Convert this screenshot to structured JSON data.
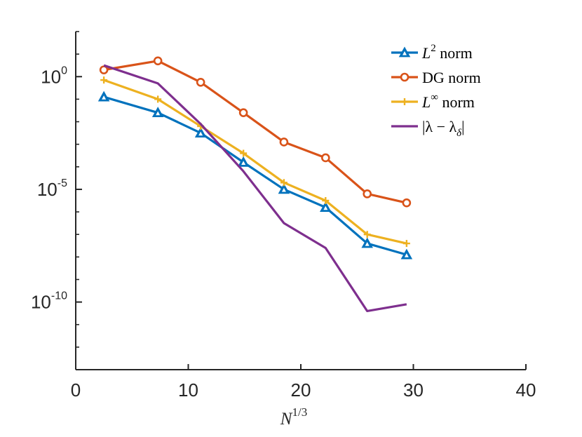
{
  "chart_data": {
    "type": "line",
    "title": "",
    "xlabel": "N^1/3",
    "xlabel_parts": {
      "base": "N",
      "sup": "1/3"
    },
    "ylabel": "",
    "xlim": [
      0,
      40
    ],
    "ylim_log10": [
      -13,
      2
    ],
    "yscale": "log",
    "grid": false,
    "legend_position": "top-right",
    "x_ticks": [
      0,
      10,
      20,
      30,
      40
    ],
    "y_ticks": [
      {
        "base": "10",
        "exp": "0",
        "log10": 0
      },
      {
        "base": "10",
        "exp": "-5",
        "log10": -5
      },
      {
        "base": "10",
        "exp": "-10",
        "log10": -10
      }
    ],
    "x": [
      2.5,
      7.3,
      11.1,
      14.9,
      18.5,
      22.2,
      25.9,
      29.4
    ],
    "series": [
      {
        "name": "L^2 norm",
        "legend": {
          "base": "L",
          "sup": "2",
          "rest": " norm"
        },
        "color": "#0072BD",
        "marker": "triangle",
        "log10_values": [
          -0.9,
          -1.6,
          -2.5,
          -3.8,
          -5.0,
          -5.8,
          -7.4,
          -7.9
        ]
      },
      {
        "name": "DG norm",
        "legend": {
          "base": "DG norm",
          "sup": "",
          "rest": ""
        },
        "color": "#D95319",
        "marker": "circle",
        "log10_values": [
          0.3,
          0.7,
          -0.25,
          -1.6,
          -2.9,
          -3.6,
          -5.2,
          -5.6
        ]
      },
      {
        "name": "L^∞ norm",
        "legend": {
          "base": "L",
          "sup": "∞",
          "rest": " norm"
        },
        "color": "#EDB120",
        "marker": "plus",
        "log10_values": [
          -0.15,
          -1.0,
          -2.2,
          -3.4,
          -4.7,
          -5.5,
          -7.0,
          -7.4
        ]
      },
      {
        "name": "|λ − λδ|",
        "legend": {
          "base": "|λ − λ",
          "sub": "δ",
          "rest": "|"
        },
        "color": "#7E2F8E",
        "marker": "none",
        "x": [
          2.5,
          7.3,
          11.1,
          14.9,
          18.5,
          22.2,
          25.9,
          29.4
        ],
        "log10_values": [
          0.5,
          -0.3,
          -2.1,
          -4.2,
          -6.5,
          -7.6,
          -10.4,
          -10.1
        ]
      }
    ]
  }
}
